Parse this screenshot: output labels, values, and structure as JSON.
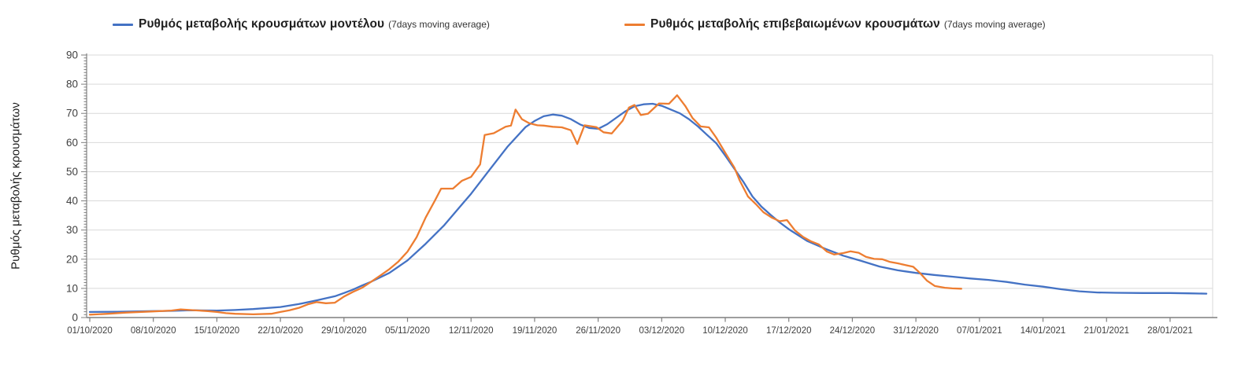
{
  "legend": {
    "model": {
      "label": "Ρυθμός μεταβολής κρουσμάτων μοντέλου",
      "suffix": "(7days moving average)",
      "color": "#4472C4"
    },
    "confirmed": {
      "label": "Ρυθμός μεταβολής επιβεβαιωμένων κρουσμάτων",
      "suffix": "(7days moving average)",
      "color": "#ED7D31"
    }
  },
  "axis_style": {
    "grid_color": "#d9d9d9",
    "axis_color": "#7f7f7f",
    "label_color": "#404040"
  },
  "chart_data": {
    "type": "line",
    "title": "",
    "xlabel": "",
    "ylabel": "Ρυθμός μεταβολής κρουσμάτων",
    "ylim": [
      0,
      90
    ],
    "y_ticks": [
      0,
      10,
      20,
      30,
      40,
      50,
      60,
      70,
      80,
      90
    ],
    "grid": "horizontal-major",
    "legend_position": "top",
    "x_unit": "days since 01/10/2020, weekly ticks",
    "x_tick_days": [
      0,
      7,
      14,
      21,
      28,
      35,
      42,
      49,
      56,
      63,
      70,
      77,
      84,
      91,
      98,
      105,
      112,
      119
    ],
    "x_tick_labels": [
      "01/10/2020",
      "08/10/2020",
      "15/10/2020",
      "22/10/2020",
      "29/10/2020",
      "05/11/2020",
      "12/11/2020",
      "19/11/2020",
      "26/11/2020",
      "03/12/2020",
      "10/12/2020",
      "17/12/2020",
      "24/12/2020",
      "31/12/2020",
      "07/01/2021",
      "14/01/2021",
      "21/01/2021",
      "28/01/2021"
    ],
    "series": [
      {
        "key": "model",
        "name": "Ρυθμός μεταβολής κρουσμάτων μοντέλου (7days moving average)",
        "color": "#4472C4",
        "points": [
          [
            0,
            1.9
          ],
          [
            3,
            2.0
          ],
          [
            7,
            2.2
          ],
          [
            9,
            2.3
          ],
          [
            11,
            2.5
          ],
          [
            14,
            2.4
          ],
          [
            16,
            2.6
          ],
          [
            18,
            2.9
          ],
          [
            21,
            3.6
          ],
          [
            23,
            4.6
          ],
          [
            25,
            5.9
          ],
          [
            27,
            7.3
          ],
          [
            28,
            8.4
          ],
          [
            29,
            9.6
          ],
          [
            30,
            11.0
          ],
          [
            31,
            12.3
          ],
          [
            33,
            15.3
          ],
          [
            35,
            19.6
          ],
          [
            37,
            25.3
          ],
          [
            39,
            31.5
          ],
          [
            41,
            38.8
          ],
          [
            42,
            42.4
          ],
          [
            44,
            50.5
          ],
          [
            46,
            58.5
          ],
          [
            48,
            65.3
          ],
          [
            49,
            67.4
          ],
          [
            50,
            69.0
          ],
          [
            51,
            69.6
          ],
          [
            52,
            69.2
          ],
          [
            53,
            68.0
          ],
          [
            54,
            66.2
          ],
          [
            55,
            65.0
          ],
          [
            56,
            64.7
          ],
          [
            57,
            66.3
          ],
          [
            59,
            70.7
          ],
          [
            60,
            72.4
          ],
          [
            61,
            73.1
          ],
          [
            62,
            73.3
          ],
          [
            63,
            72.6
          ],
          [
            65,
            70.0
          ],
          [
            66,
            68.0
          ],
          [
            67,
            65.5
          ],
          [
            68,
            62.6
          ],
          [
            69,
            59.8
          ],
          [
            70,
            55.5
          ],
          [
            71,
            51.0
          ],
          [
            72,
            46.5
          ],
          [
            73,
            41.5
          ],
          [
            74,
            38.0
          ],
          [
            75,
            35.2
          ],
          [
            76,
            32.6
          ],
          [
            77,
            30.3
          ],
          [
            79,
            26.3
          ],
          [
            81,
            23.6
          ],
          [
            83,
            21.2
          ],
          [
            85,
            19.4
          ],
          [
            87,
            17.5
          ],
          [
            89,
            16.2
          ],
          [
            91,
            15.3
          ],
          [
            93,
            14.6
          ],
          [
            95,
            14.0
          ],
          [
            97,
            13.4
          ],
          [
            99,
            12.9
          ],
          [
            101,
            12.2
          ],
          [
            103,
            11.3
          ],
          [
            105,
            10.6
          ],
          [
            107,
            9.7
          ],
          [
            109,
            9.0
          ],
          [
            111,
            8.6
          ],
          [
            113,
            8.5
          ],
          [
            116,
            8.4
          ],
          [
            119,
            8.4
          ],
          [
            121,
            8.3
          ],
          [
            123,
            8.2
          ]
        ]
      },
      {
        "key": "confirmed",
        "name": "Ρυθμός μεταβολής επιβεβαιωμένων κρουσμάτων (7days moving average)",
        "color": "#ED7D31",
        "points": [
          [
            0,
            1.0
          ],
          [
            2,
            1.3
          ],
          [
            4,
            1.7
          ],
          [
            7,
            2.1
          ],
          [
            9,
            2.4
          ],
          [
            10,
            2.8
          ],
          [
            11,
            2.6
          ],
          [
            13,
            2.2
          ],
          [
            14,
            1.9
          ],
          [
            15,
            1.5
          ],
          [
            16,
            1.3
          ],
          [
            18,
            1.1
          ],
          [
            20,
            1.3
          ],
          [
            21,
            1.9
          ],
          [
            22,
            2.5
          ],
          [
            23,
            3.3
          ],
          [
            24,
            4.5
          ],
          [
            25,
            5.3
          ],
          [
            26,
            4.9
          ],
          [
            27,
            5.1
          ],
          [
            28,
            7.2
          ],
          [
            29,
            8.8
          ],
          [
            30,
            10.2
          ],
          [
            31,
            12.3
          ],
          [
            32,
            14.4
          ],
          [
            33,
            16.6
          ],
          [
            34,
            19.2
          ],
          [
            35,
            22.6
          ],
          [
            36,
            27.5
          ],
          [
            37,
            34.3
          ],
          [
            38,
            40.0
          ],
          [
            38.7,
            44.2
          ],
          [
            40,
            44.2
          ],
          [
            41,
            46.9
          ],
          [
            42,
            48.2
          ],
          [
            43,
            52.5
          ],
          [
            43.5,
            62.6
          ],
          [
            44.5,
            63.2
          ],
          [
            45.8,
            65.4
          ],
          [
            46.4,
            65.8
          ],
          [
            46.9,
            71.3
          ],
          [
            47.6,
            68.0
          ],
          [
            48.4,
            66.6
          ],
          [
            49.3,
            65.9
          ],
          [
            50,
            65.8
          ],
          [
            51,
            65.4
          ],
          [
            52,
            65.2
          ],
          [
            53,
            64.2
          ],
          [
            53.7,
            59.5
          ],
          [
            54.5,
            65.9
          ],
          [
            55.8,
            65.3
          ],
          [
            56.6,
            63.5
          ],
          [
            57.5,
            63.1
          ],
          [
            58.7,
            67.5
          ],
          [
            59.4,
            72.0
          ],
          [
            60,
            72.9
          ],
          [
            60.7,
            69.4
          ],
          [
            61.5,
            69.9
          ],
          [
            62.7,
            73.4
          ],
          [
            63.8,
            73.3
          ],
          [
            64.7,
            76.2
          ],
          [
            65.6,
            72.5
          ],
          [
            66.4,
            68.4
          ],
          [
            67.3,
            65.5
          ],
          [
            68.2,
            65.2
          ],
          [
            69,
            61.7
          ],
          [
            70,
            56.5
          ],
          [
            71,
            51.4
          ],
          [
            71.6,
            46.9
          ],
          [
            72.5,
            41.5
          ],
          [
            73.4,
            38.8
          ],
          [
            74.2,
            36.1
          ],
          [
            75.1,
            34.3
          ],
          [
            76,
            33.0
          ],
          [
            76.8,
            33.4
          ],
          [
            77.7,
            29.8
          ],
          [
            78.6,
            27.6
          ],
          [
            79.4,
            26.2
          ],
          [
            80.3,
            25.1
          ],
          [
            81.2,
            22.6
          ],
          [
            82,
            21.6
          ],
          [
            83,
            22.1
          ],
          [
            83.8,
            22.7
          ],
          [
            84.7,
            22.2
          ],
          [
            85.5,
            20.8
          ],
          [
            86.4,
            20.1
          ],
          [
            87.3,
            20.0
          ],
          [
            88.1,
            19.1
          ],
          [
            89,
            18.6
          ],
          [
            90,
            17.9
          ],
          [
            90.7,
            17.4
          ],
          [
            91.4,
            15.4
          ],
          [
            92.2,
            12.7
          ],
          [
            93.1,
            10.8
          ],
          [
            94.2,
            10.2
          ],
          [
            95,
            10.0
          ],
          [
            96,
            9.9
          ]
        ]
      }
    ]
  }
}
